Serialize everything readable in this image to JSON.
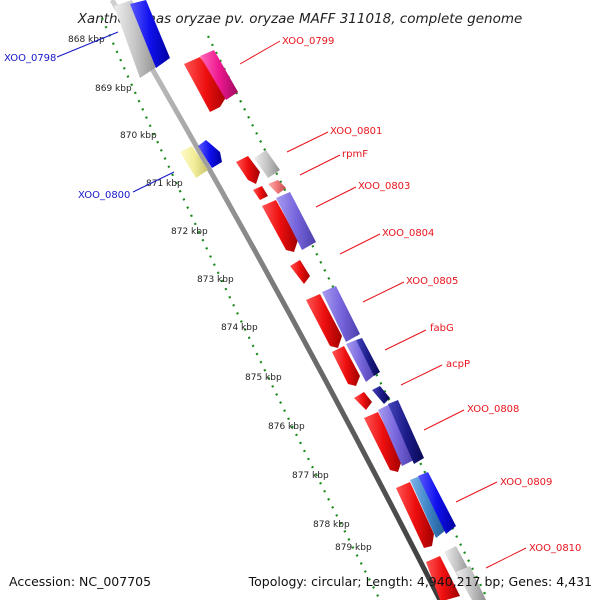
{
  "title": "Xanthomonas oryzae pv. oryzae MAFF 311018, complete genome",
  "ticks": [
    "868 kbp",
    "869 kbp",
    "870 kbp",
    "871 kbp",
    "872 kbp",
    "873 kbp",
    "874 kbp",
    "875 kbp",
    "876 kbp",
    "877 kbp",
    "878 kbp",
    "879 kbp"
  ],
  "gene_labels": [
    {
      "id": "g1",
      "text": "XOO_0798",
      "color": "blue"
    },
    {
      "id": "g2",
      "text": "XOO_0799",
      "color": "red"
    },
    {
      "id": "g3",
      "text": "XOO_0800",
      "color": "blue"
    },
    {
      "id": "g4",
      "text": "XOO_0801",
      "color": "red"
    },
    {
      "id": "g5",
      "text": "rpmF",
      "color": "red"
    },
    {
      "id": "g6",
      "text": "XOO_0803",
      "color": "red"
    },
    {
      "id": "g7",
      "text": "XOO_0804",
      "color": "red"
    },
    {
      "id": "g8",
      "text": "XOO_0805",
      "color": "red"
    },
    {
      "id": "g9",
      "text": "fabG",
      "color": "red"
    },
    {
      "id": "g10",
      "text": "acpP",
      "color": "red"
    },
    {
      "id": "g11",
      "text": "XOO_0808",
      "color": "red"
    },
    {
      "id": "g12",
      "text": "XOO_0809",
      "color": "red"
    },
    {
      "id": "g13",
      "text": "XOO_0810",
      "color": "red"
    }
  ],
  "footer": {
    "accession": "Accession: NC_007705",
    "summary": "Topology: circular; Length: 4,940,217 bp; Genes: 4,431"
  },
  "colors": {
    "forward_gene": "#ee1111",
    "reverse_gene": "#1111ee",
    "cds_gray": "#c8c8c8",
    "backbone": "#888888",
    "tick_dots": "#1a8a1a",
    "magenta": "#ee1890",
    "purple": "#7766dd",
    "navy": "#1c1c8a",
    "yellow": "#f2ee9a"
  }
}
